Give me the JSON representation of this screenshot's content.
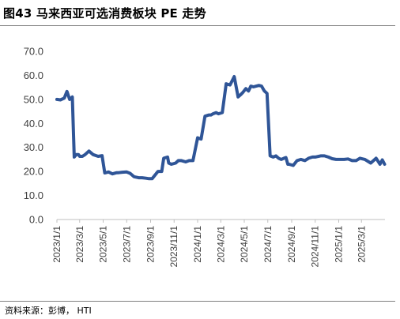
{
  "header": {
    "title": "图43 马来西亚可选消费板块 PE 走势"
  },
  "footer": {
    "source": "资料来源：彭博， HTI"
  },
  "colors": {
    "series": "#2F5597",
    "axis": "#bfbfbf",
    "text": "#404040",
    "rule": "#7f7f7f"
  },
  "chart_data": {
    "type": "line",
    "title": "",
    "xlabel": "",
    "ylabel": "",
    "ylim": [
      0,
      70
    ],
    "yticks": [
      "0.0",
      "10.0",
      "20.0",
      "30.0",
      "40.0",
      "50.0",
      "60.0",
      "70.0"
    ],
    "xticks": [
      "2023/1/1",
      "2023/3/1",
      "2023/5/1",
      "2023/7/1",
      "2023/9/1",
      "2023/11/1",
      "2024/1/1",
      "2024/3/1",
      "2024/5/1",
      "2024/7/1",
      "2024/9/1",
      "2024/11/1",
      "2025/1/1",
      "2025/3/1"
    ],
    "grid": false,
    "legend": "none",
    "series": [
      {
        "x": [
          "2023-01-01",
          "2023-01-10",
          "2023-01-20",
          "2023-01-27",
          "2023-02-03",
          "2023-02-10",
          "2023-02-15",
          "2023-02-20",
          "2023-02-26",
          "2023-03-01",
          "2023-03-08",
          "2023-03-15",
          "2023-03-25",
          "2023-04-05",
          "2023-04-18",
          "2023-04-28",
          "2023-05-05",
          "2023-05-15",
          "2023-05-25",
          "2023-06-05",
          "2023-06-10",
          "2023-06-20",
          "2023-07-01",
          "2023-07-10",
          "2023-07-20",
          "2023-08-01",
          "2023-08-10",
          "2023-08-20",
          "2023-08-28",
          "2023-09-05",
          "2023-09-20",
          "2023-09-30",
          "2023-10-05",
          "2023-10-15",
          "2023-10-18",
          "2023-10-25",
          "2023-11-05",
          "2023-11-12",
          "2023-11-20",
          "2023-12-01",
          "2023-12-10",
          "2023-12-20",
          "2024-01-01",
          "2024-01-10",
          "2024-01-20",
          "2024-01-30",
          "2024-02-05",
          "2024-02-10",
          "2024-02-18",
          "2024-02-24",
          "2024-03-05",
          "2024-03-15",
          "2024-03-25",
          "2024-04-05",
          "2024-04-15",
          "2024-04-22",
          "2024-04-28",
          "2024-05-05",
          "2024-05-12",
          "2024-05-18",
          "2024-05-25",
          "2024-06-01",
          "2024-06-08",
          "2024-06-15",
          "2024-06-22",
          "2024-06-29",
          "2024-07-07",
          "2024-07-15",
          "2024-07-22",
          "2024-07-29",
          "2024-08-05",
          "2024-08-12",
          "2024-08-17",
          "2024-08-22",
          "2024-08-25",
          "2024-09-05",
          "2024-09-15",
          "2024-09-25",
          "2024-10-05",
          "2024-10-15",
          "2024-10-25",
          "2024-11-01",
          "2024-11-15",
          "2024-11-25",
          "2024-12-05",
          "2024-12-15",
          "2024-12-25",
          "2025-01-05",
          "2025-01-15",
          "2025-01-25",
          "2025-02-05",
          "2025-02-15",
          "2025-02-25",
          "2025-03-10",
          "2025-03-25",
          "2025-04-08",
          "2025-04-18",
          "2025-04-24",
          "2025-04-30"
        ],
        "y": [
          50.0,
          49.8,
          50.5,
          53.3,
          50.0,
          51.0,
          26.0,
          27.0,
          27.0,
          26.3,
          26.3,
          27.0,
          28.5,
          27.0,
          26.3,
          26.6,
          19.4,
          19.8,
          19.0,
          19.5,
          19.5,
          19.7,
          19.8,
          19.2,
          17.8,
          17.4,
          17.4,
          17.2,
          17.0,
          17.0,
          20.0,
          20.0,
          25.5,
          26.0,
          23.5,
          23.0,
          23.5,
          24.5,
          24.5,
          24.0,
          24.5,
          24.5,
          34.0,
          33.5,
          43.0,
          43.5,
          43.5,
          44.0,
          44.5,
          44.0,
          44.5,
          56.5,
          56.0,
          59.5,
          51.0,
          52.0,
          53.0,
          54.5,
          53.5,
          55.5,
          55.2,
          55.5,
          55.8,
          55.5,
          53.5,
          52.5,
          26.5,
          26.0,
          26.5,
          25.5,
          25.0,
          25.5,
          25.8,
          23.0,
          23.0,
          22.5,
          24.5,
          25.0,
          24.5,
          25.5,
          26.0,
          26.0,
          26.5,
          26.5,
          26.0,
          25.3,
          25.0,
          25.0,
          25.0,
          25.2,
          24.5,
          24.5,
          25.5,
          25.0,
          23.5,
          25.5,
          23.0,
          24.8,
          23.0
        ]
      }
    ]
  }
}
